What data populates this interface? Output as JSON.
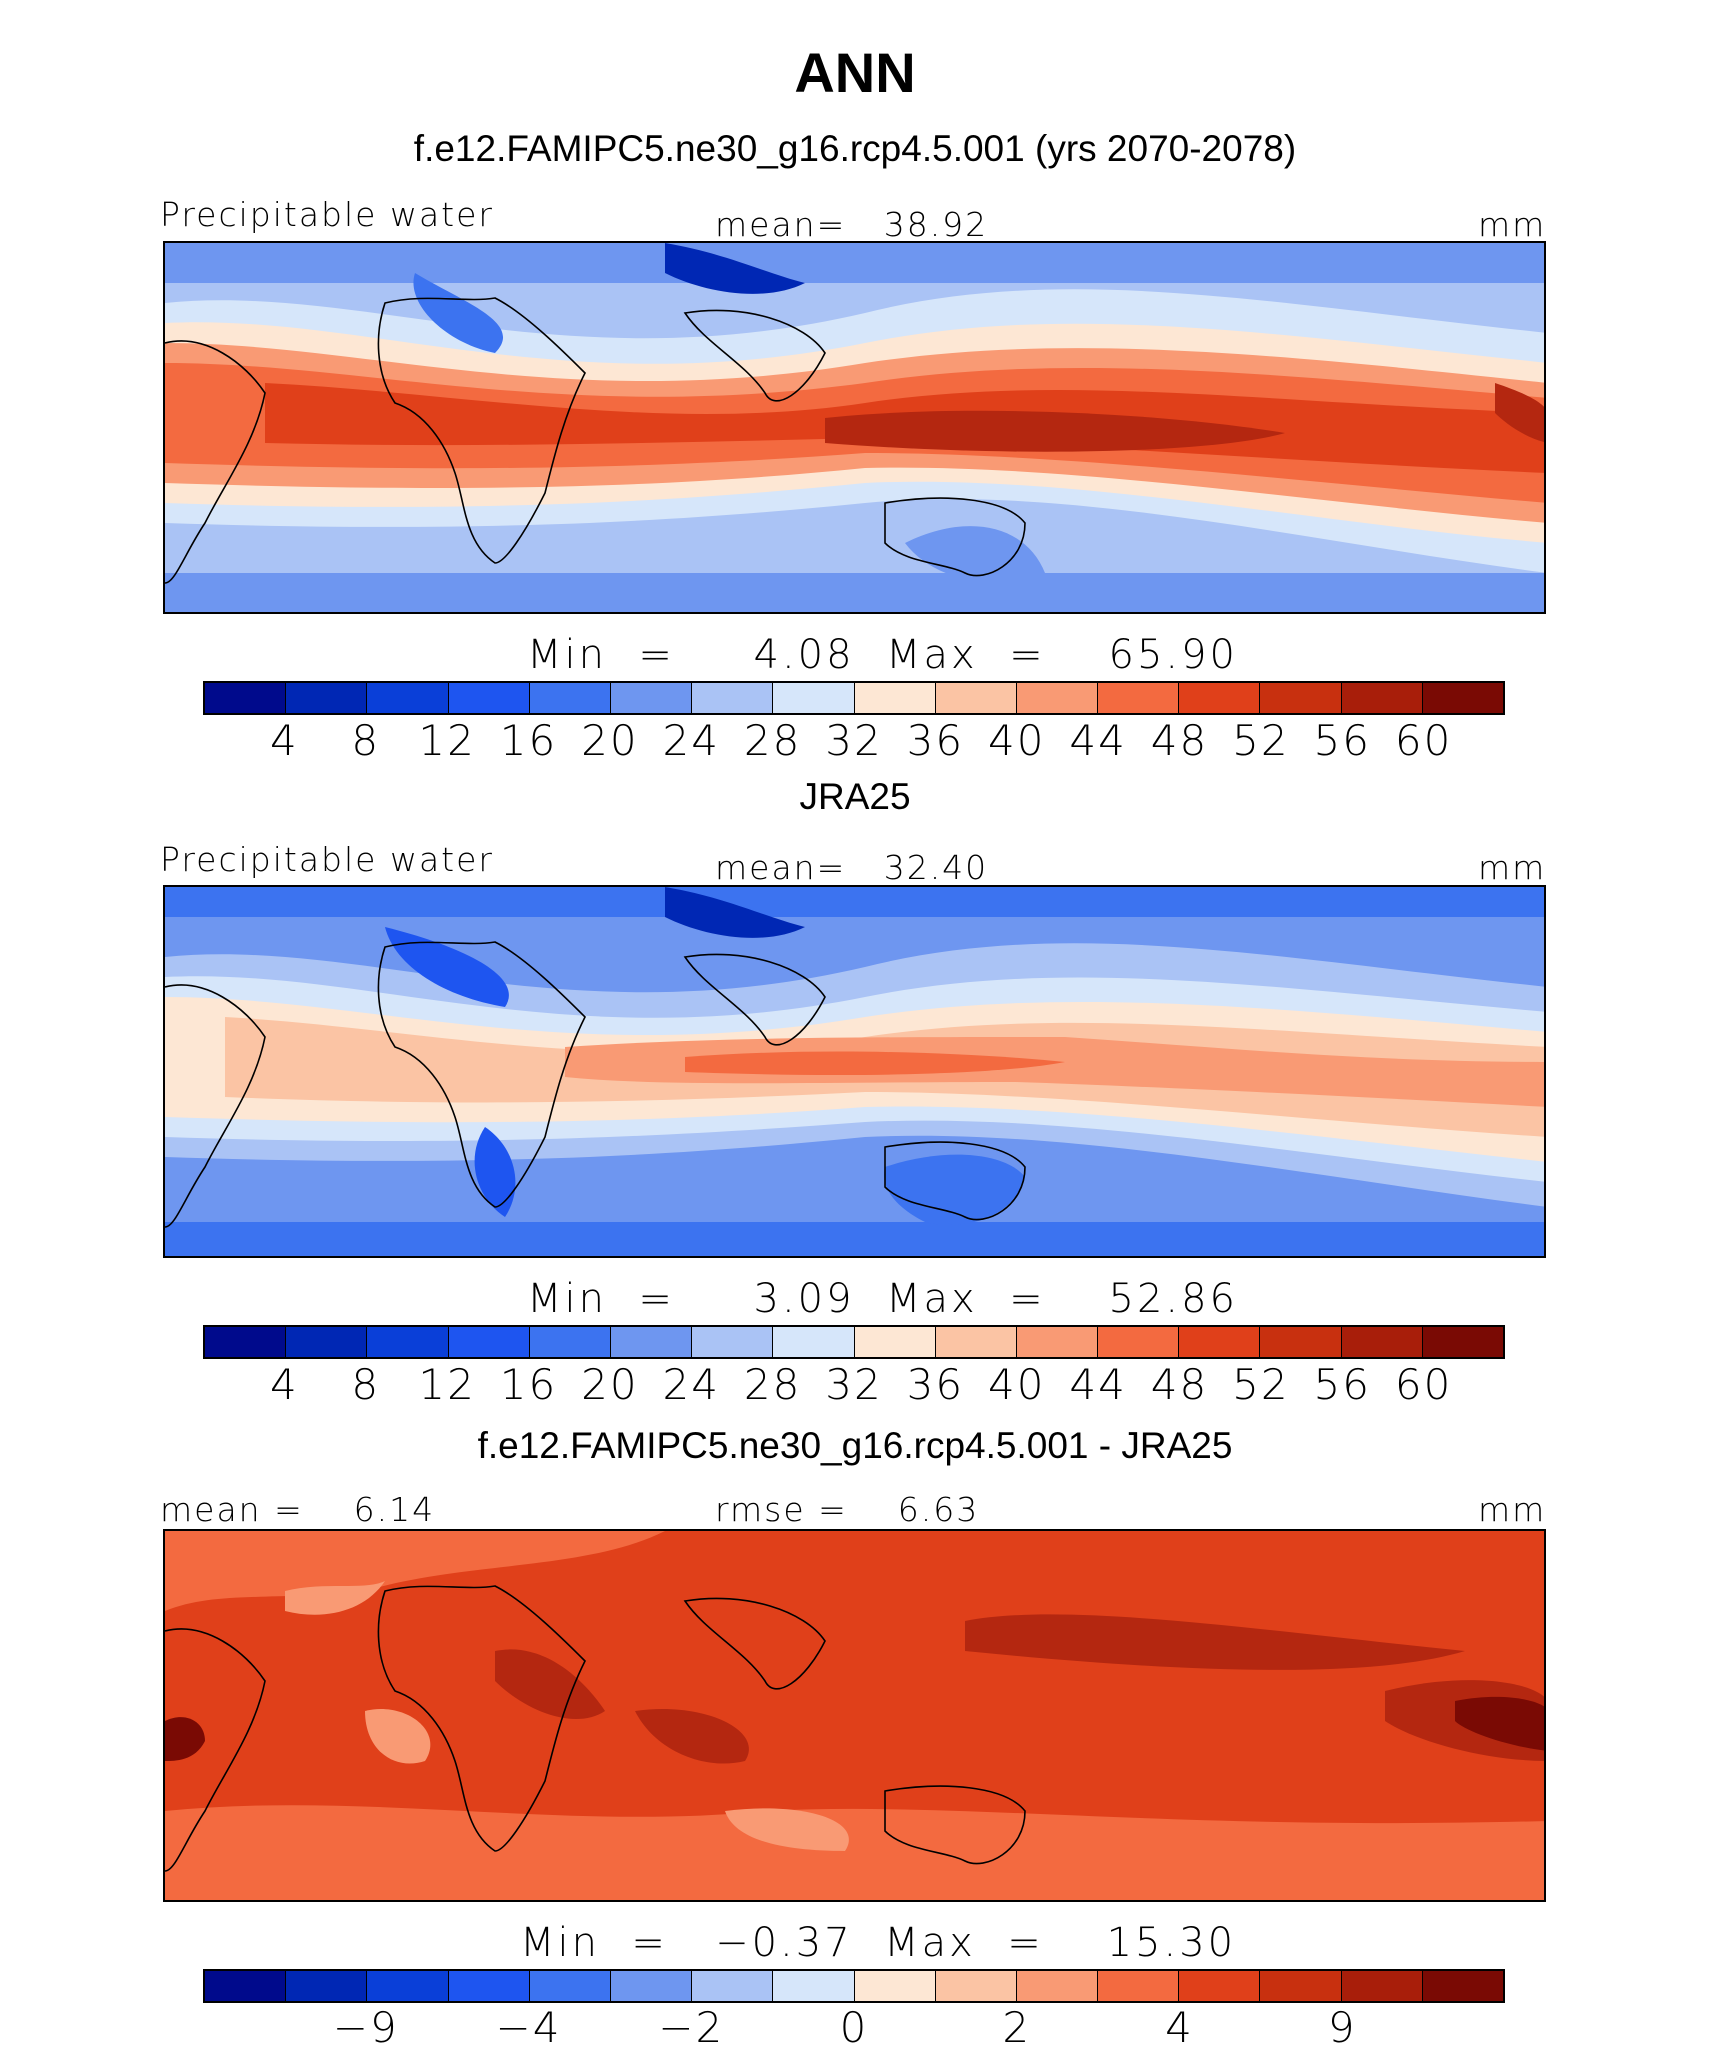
{
  "title": "ANN",
  "panels": [
    {
      "name": "model",
      "title": "f.e12.FAMIPC5.ne30_g16.rcp4.5.001 (yrs 2070-2078)",
      "left_label": "Precipitable water",
      "center_label": "mean=   38.92",
      "units": "mm",
      "stats": "Min  =     4.08  Max  =    65.90",
      "colorbar_ticks": [
        "4",
        "8",
        "12",
        "16",
        "20",
        "24",
        "28",
        "32",
        "36",
        "40",
        "44",
        "48",
        "52",
        "56",
        "60"
      ]
    },
    {
      "name": "obs",
      "title": "JRA25",
      "left_label": "Precipitable water",
      "center_label": "mean=   32.40",
      "units": "mm",
      "stats": "Min  =     3.09  Max  =    52.86",
      "colorbar_ticks": [
        "4",
        "8",
        "12",
        "16",
        "20",
        "24",
        "28",
        "32",
        "36",
        "40",
        "44",
        "48",
        "52",
        "56",
        "60"
      ]
    },
    {
      "name": "diff",
      "title": "f.e12.FAMIPC5.ne30_g16.rcp4.5.001 - JRA25",
      "left_label": "mean =    6.14",
      "center_label": "rmse =    6.63",
      "units": "mm",
      "stats": "Min  =   −0.37  Max  =    15.30",
      "colorbar_ticks": [
        "−9",
        "−4",
        "−2",
        "0",
        "2",
        "4",
        "9"
      ]
    }
  ],
  "colorbar_colors": [
    "#000a8c",
    "#0027b4",
    "#0a3fd8",
    "#1e55f0",
    "#3c73f0",
    "#6e96f0",
    "#aac3f5",
    "#d6e6fa",
    "#fde7d4",
    "#fbc4a4",
    "#f99a74",
    "#f36a40",
    "#e0401a",
    "#b42710",
    "#7a0a04"
  ],
  "chart_data": [
    {
      "type": "heatmap",
      "title": "f.e12.FAMIPC5.ne30_g16.rcp4.5.001 (yrs 2070-2078)",
      "variable": "Precipitable water",
      "units": "mm",
      "mean": 38.92,
      "min": 4.08,
      "max": 65.9,
      "levels": [
        4,
        8,
        12,
        16,
        20,
        24,
        28,
        32,
        36,
        40,
        44,
        48,
        52,
        56,
        60
      ]
    },
    {
      "type": "heatmap",
      "title": "JRA25",
      "variable": "Precipitable water",
      "units": "mm",
      "mean": 32.4,
      "min": 3.09,
      "max": 52.86,
      "levels": [
        4,
        8,
        12,
        16,
        20,
        24,
        28,
        32,
        36,
        40,
        44,
        48,
        52,
        56,
        60
      ]
    },
    {
      "type": "heatmap",
      "title": "f.e12.FAMIPC5.ne30_g16.rcp4.5.001 - JRA25",
      "units": "mm",
      "mean": 6.14,
      "rmse": 6.63,
      "min": -0.37,
      "max": 15.3,
      "levels": [
        -9,
        -4,
        -2,
        0,
        2,
        4,
        9
      ]
    }
  ]
}
